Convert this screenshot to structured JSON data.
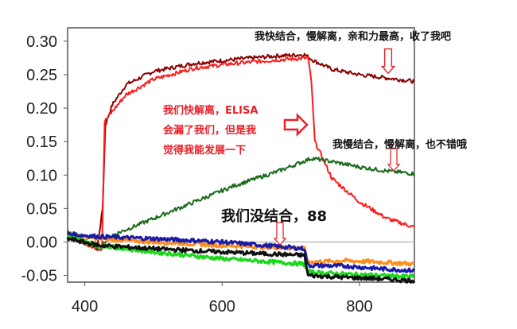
{
  "chart_data": {
    "type": "line",
    "xlim": [
      375,
      880
    ],
    "ylim": [
      -0.06,
      0.32
    ],
    "xticks": [
      400,
      600,
      800
    ],
    "yticks": [
      0.3,
      0.25,
      0.2,
      0.15,
      0.1,
      0.05,
      0.0,
      -0.05
    ],
    "ytick_labels": [
      "0.30",
      "0.25",
      "0.20",
      "0.15",
      "0.10",
      "0.05",
      "0.00",
      "-0.05"
    ],
    "grid": false,
    "series": [
      {
        "color": "#8b0000",
        "x": [
          375,
          418,
          426,
          430,
          440,
          460,
          500,
          560,
          620,
          680,
          720,
          735,
          760,
          800,
          840,
          880
        ],
        "y": [
          0.01,
          -0.01,
          0.05,
          0.175,
          0.205,
          0.235,
          0.255,
          0.267,
          0.273,
          0.278,
          0.28,
          0.27,
          0.258,
          0.25,
          0.245,
          0.24
        ]
      },
      {
        "color": "#ff1a1a",
        "x": [
          375,
          418,
          425,
          429,
          440,
          460,
          500,
          560,
          620,
          680,
          725,
          730,
          735,
          760,
          800,
          840,
          880
        ],
        "y": [
          0.01,
          -0.01,
          -0.01,
          0.18,
          0.195,
          0.22,
          0.243,
          0.26,
          0.267,
          0.272,
          0.275,
          0.24,
          0.15,
          0.095,
          0.06,
          0.035,
          0.022
        ]
      },
      {
        "color": "#1a6b1a",
        "x": [
          375,
          400,
          420,
          440,
          500,
          560,
          620,
          680,
          730,
          760,
          800,
          840,
          880
        ],
        "y": [
          0.015,
          0.0,
          -0.01,
          0.01,
          0.035,
          0.06,
          0.085,
          0.105,
          0.125,
          0.12,
          0.112,
          0.106,
          0.102
        ]
      },
      {
        "color": "#ff8c1a",
        "x": [
          375,
          420,
          500,
          600,
          720,
          725,
          780,
          830,
          880
        ],
        "y": [
          0.01,
          0.005,
          0.0,
          -0.005,
          -0.01,
          -0.03,
          -0.028,
          -0.03,
          -0.033
        ]
      },
      {
        "color": "#1a1aa8",
        "x": [
          375,
          420,
          500,
          600,
          720,
          725,
          780,
          830,
          880
        ],
        "y": [
          0.012,
          0.008,
          0.005,
          0.0,
          -0.01,
          -0.035,
          -0.036,
          -0.04,
          -0.043
        ]
      },
      {
        "color": "#18d818",
        "x": [
          375,
          420,
          500,
          600,
          720,
          725,
          780,
          830,
          880
        ],
        "y": [
          0.008,
          -0.005,
          -0.015,
          -0.025,
          -0.033,
          -0.045,
          -0.048,
          -0.05,
          -0.052
        ]
      },
      {
        "color": "#111111",
        "x": [
          375,
          420,
          500,
          600,
          720,
          725,
          780,
          830,
          880
        ],
        "y": [
          0.005,
          -0.005,
          -0.01,
          -0.015,
          -0.02,
          -0.05,
          -0.053,
          -0.055,
          -0.058
        ]
      }
    ],
    "annotations": [
      {
        "text": "我快结合，慢解离，亲和力最高，收了我吧",
        "color": "#111111"
      },
      {
        "text": "我们快解离，ELISA",
        "color": "#e8202a"
      },
      {
        "text": "会漏了我们，但是我",
        "color": "#e8202a"
      },
      {
        "text": "觉得我能发展一下",
        "color": "#e8202a"
      },
      {
        "text": "我慢结合，慢解离，也不错哦",
        "color": "#111111"
      },
      {
        "text": "我们没结合，88",
        "color": "#111111"
      }
    ]
  }
}
